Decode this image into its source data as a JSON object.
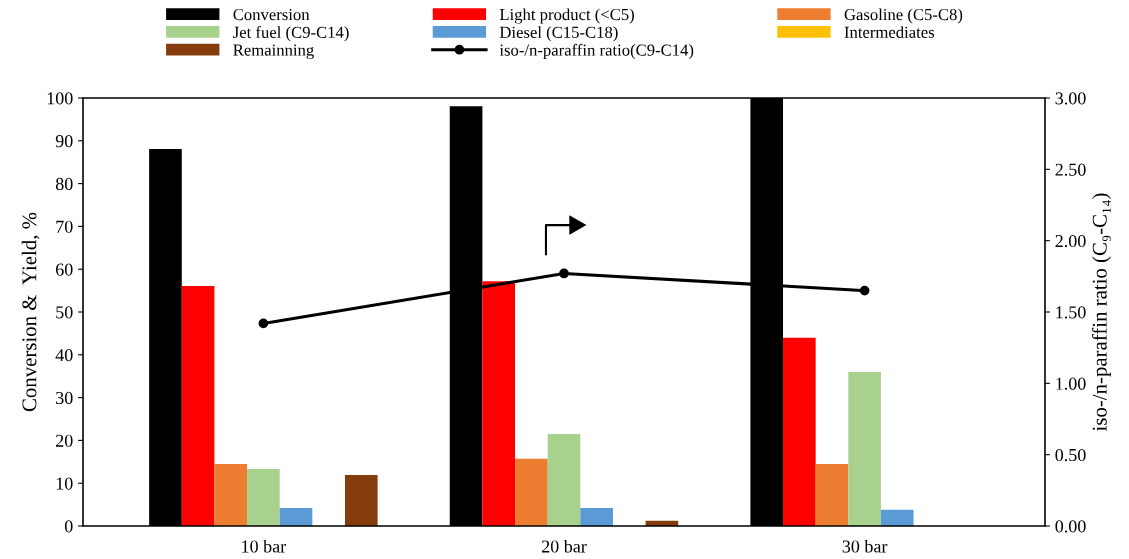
{
  "chart_data": {
    "type": "bar",
    "ylabel": "Conversion &  Yield, %",
    "y2label": "iso-/n-paraffin ratio (C₉-C₁₄)",
    "categories": [
      "10 bar",
      "20 bar",
      "30 bar"
    ],
    "series": [
      {
        "name": "Conversion",
        "color": "#000000",
        "values": [
          88.1,
          98.1,
          100
        ]
      },
      {
        "name": "Light product (<C5)",
        "color": "#ff0000",
        "values": [
          56.1,
          57.2,
          44.0
        ]
      },
      {
        "name": "Gasoline (C5-C8)",
        "color": "#ed7d31",
        "values": [
          14.5,
          15.7,
          14.5
        ]
      },
      {
        "name": "Jet fuel (C9-C14)",
        "color": "#a9d18e",
        "values": [
          13.3,
          21.5,
          36.0
        ]
      },
      {
        "name": "Diesel (C15-C18)",
        "color": "#5b9bd5",
        "values": [
          4.2,
          4.2,
          3.8
        ]
      },
      {
        "name": "Intermediates",
        "color": "#ffc000",
        "values": [
          0,
          0,
          0
        ]
      },
      {
        "name": "Remainning",
        "color": "#843c0c",
        "values": [
          11.9,
          1.2,
          0
        ]
      },
      {
        "name": "iso-/n-paraffin ratio(C9-C14)",
        "color": "#000000",
        "type": "line",
        "axis": "y2",
        "marker": "circle",
        "values": [
          1.42,
          1.77,
          1.65
        ]
      }
    ],
    "ylim": [
      0,
      100
    ],
    "yticks": [
      0,
      10,
      20,
      30,
      40,
      50,
      60,
      70,
      80,
      90,
      100
    ],
    "y2lim": [
      0,
      3
    ],
    "y2ticks": [
      {
        "value": 0,
        "label": "0.00"
      },
      {
        "value": 0.5,
        "label": "0.50"
      },
      {
        "value": 1,
        "label": "1.00"
      },
      {
        "value": 1.5,
        "label": "1.50"
      },
      {
        "value": 2,
        "label": "2.00"
      },
      {
        "value": 2.5,
        "label": "2.50"
      },
      {
        "value": 3,
        "label": "3.00"
      }
    ],
    "legend": "top",
    "grid": false
  }
}
